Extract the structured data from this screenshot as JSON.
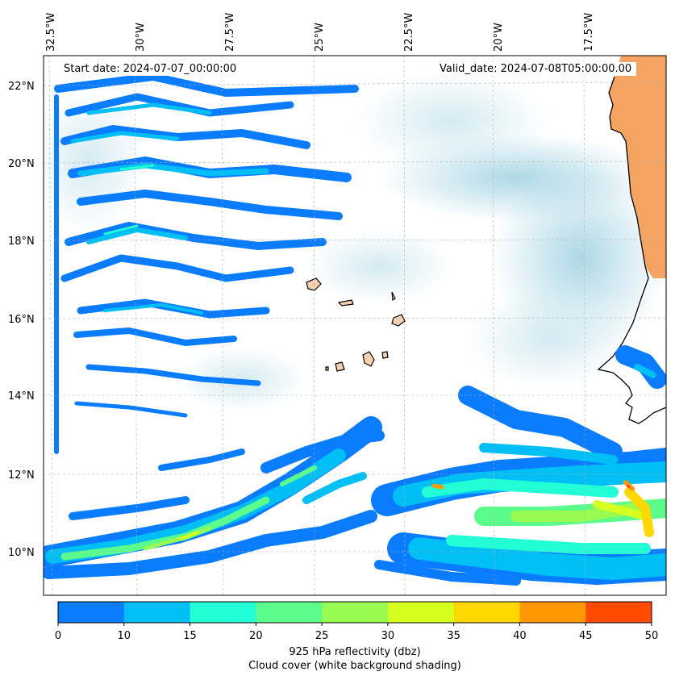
{
  "start_date": "Start date: 2024-07-07_00:00:00",
  "valid_date": "Valid_date: 2024-07-08T05:00:00.00",
  "colorbar": {
    "label": "925 hPa reflectivity (dbz)",
    "sublabel": "Cloud cover (white background shading)",
    "ticks": [
      "0",
      "10",
      "15",
      "20",
      "25",
      "30",
      "35",
      "40",
      "45",
      "50"
    ],
    "colors": [
      "#0a7cff",
      "#00bff5",
      "#22ffd6",
      "#5cfc8c",
      "#99fb4f",
      "#d5ff1e",
      "#ffd800",
      "#ff9700",
      "#ff4a00"
    ]
  },
  "lon_ticks": [
    "32.5°W",
    "30°W",
    "27.5°W",
    "25°W",
    "22.5°W",
    "20°W",
    "17.5°W"
  ],
  "lat_ticks": [
    "22°N",
    "20°N",
    "18°N",
    "16°N",
    "14°N",
    "12°N",
    "10°N"
  ],
  "colors": {
    "cloud": "#a9d6e5",
    "land": "#f4a460",
    "island": "#f5d0b0",
    "coast": "#000000"
  }
}
